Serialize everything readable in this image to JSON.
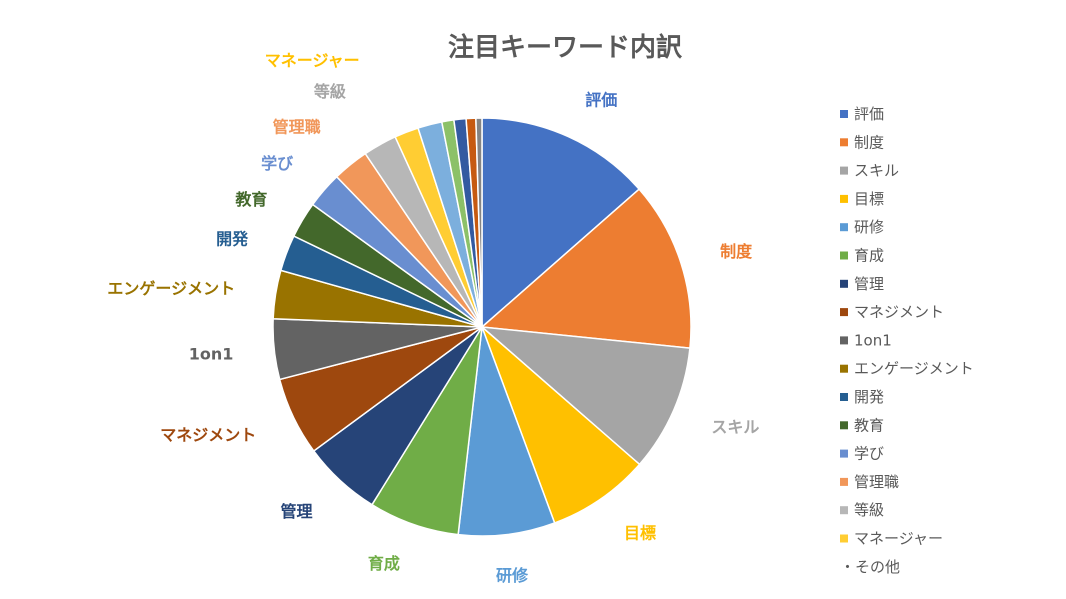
{
  "chart_data": {
    "type": "pie",
    "title": "注目キーワード内訳",
    "legend_position": "right",
    "slices": [
      {
        "name": "評価",
        "value": 14.5,
        "color": "#4472C4",
        "label_color": "#4472C4"
      },
      {
        "name": "制度",
        "value": 14.0,
        "color": "#ED7D31",
        "label_color": "#ED7D31"
      },
      {
        "name": "スキル",
        "value": 10.5,
        "color": "#A5A5A5",
        "label_color": "#A5A5A5"
      },
      {
        "name": "目標",
        "value": 8.5,
        "color": "#FFC000",
        "label_color": "#FFC000"
      },
      {
        "name": "研修",
        "value": 8.0,
        "color": "#5B9BD5",
        "label_color": "#5B9BD5"
      },
      {
        "name": "育成",
        "value": 7.5,
        "color": "#70AD47",
        "label_color": "#70AD47"
      },
      {
        "name": "管理",
        "value": 6.5,
        "color": "#264478",
        "label_color": "#264478"
      },
      {
        "name": "マネジメント",
        "value": 6.5,
        "color": "#9E480E",
        "label_color": "#9E480E"
      },
      {
        "name": "1on1",
        "value": 5.0,
        "color": "#636363",
        "label_color": "#636363"
      },
      {
        "name": "エンゲージメント",
        "value": 4.0,
        "color": "#997300",
        "label_color": "#997300"
      },
      {
        "name": "開発",
        "value": 3.0,
        "color": "#255E91",
        "label_color": "#255E91"
      },
      {
        "name": "教育",
        "value": 3.0,
        "color": "#43682B",
        "label_color": "#43682B"
      },
      {
        "name": "学び",
        "value": 3.0,
        "color": "#698ED0",
        "label_color": "#698ED0"
      },
      {
        "name": "管理職",
        "value": 3.0,
        "color": "#F1975A",
        "label_color": "#F1975A"
      },
      {
        "name": "等級",
        "value": 2.8,
        "color": "#B7B7B7",
        "label_color": "#A5A5A5"
      },
      {
        "name": "マネージャー",
        "value": 2.0,
        "color": "#FFCD33",
        "label_color": "#FFC000"
      },
      {
        "name": "",
        "value": 2.0,
        "color": "#7CAFDD"
      },
      {
        "name": "",
        "value": 1.0,
        "color": "#8CC168"
      },
      {
        "name": "",
        "value": 1.0,
        "color": "#335AA1"
      },
      {
        "name": "",
        "value": 0.8,
        "color": "#C65A11"
      },
      {
        "name": "",
        "value": 0.5,
        "color": "#848484"
      }
    ],
    "legend_entries": [
      {
        "name": "評価",
        "color": "#4472C4"
      },
      {
        "name": "制度",
        "color": "#ED7D31"
      },
      {
        "name": "スキル",
        "color": "#A5A5A5"
      },
      {
        "name": "目標",
        "color": "#FFC000"
      },
      {
        "name": "研修",
        "color": "#5B9BD5"
      },
      {
        "name": "育成",
        "color": "#70AD47"
      },
      {
        "name": "管理",
        "color": "#264478"
      },
      {
        "name": "マネジメント",
        "color": "#9E480E"
      },
      {
        "name": "1on1",
        "color": "#636363"
      },
      {
        "name": "エンゲージメント",
        "color": "#997300"
      },
      {
        "name": "開発",
        "color": "#255E91"
      },
      {
        "name": "教育",
        "color": "#43682B"
      },
      {
        "name": "学び",
        "color": "#698ED0"
      },
      {
        "name": "管理職",
        "color": "#F1975A"
      },
      {
        "name": "等級",
        "color": "#B7B7B7"
      },
      {
        "name": "マネージャー",
        "color": "#FFCD33"
      },
      {
        "name": "・その他",
        "color": ""
      }
    ]
  }
}
